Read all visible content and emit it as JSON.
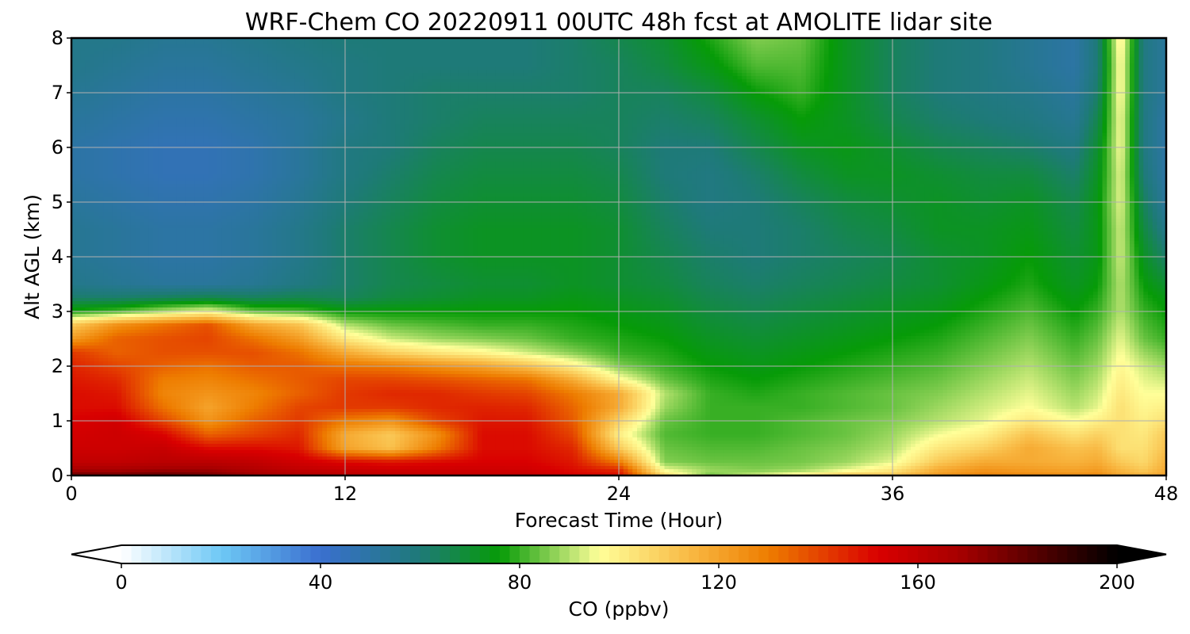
{
  "chart_data": {
    "type": "heatmap",
    "title": "WRF-Chem CO  20220911 00UTC 48h fcst at AMOLITE lidar site",
    "xlabel": "Forecast Time (Hour)",
    "ylabel": "Alt AGL (km)",
    "xlim": [
      0,
      48
    ],
    "ylim": [
      0,
      8
    ],
    "x_ticks": [
      "0",
      "12",
      "24",
      "36",
      "48"
    ],
    "y_ticks": [
      "0",
      "1",
      "2",
      "3",
      "4",
      "5",
      "6",
      "7",
      "8"
    ],
    "grid": true,
    "colorbar": {
      "label": "CO  (ppbv)",
      "range": [
        0,
        200
      ],
      "ticks": [
        "0",
        "40",
        "80",
        "120",
        "160",
        "200"
      ],
      "extend": "both",
      "stops": [
        {
          "value": 0,
          "color": "#ffffff"
        },
        {
          "value": 20,
          "color": "#6ec8f5"
        },
        {
          "value": 40,
          "color": "#3a6fcf"
        },
        {
          "value": 60,
          "color": "#1e7a78"
        },
        {
          "value": 76,
          "color": "#069b07"
        },
        {
          "value": 96,
          "color": "#ffff99"
        },
        {
          "value": 115,
          "color": "#f8b640"
        },
        {
          "value": 130,
          "color": "#ee7d00"
        },
        {
          "value": 152,
          "color": "#d90000"
        },
        {
          "value": 168,
          "color": "#a80000"
        },
        {
          "value": 200,
          "color": "#000000"
        }
      ]
    },
    "grid_x": [
      0,
      2,
      4,
      6,
      8,
      10,
      12,
      14,
      16,
      18,
      20,
      22,
      24,
      26,
      28,
      30,
      32,
      34,
      36,
      38,
      40,
      42,
      44,
      45,
      46,
      47,
      48
    ],
    "grid_y": [
      0,
      0.1,
      0.25,
      0.5,
      0.75,
      1.0,
      1.25,
      1.5,
      1.75,
      2.0,
      2.25,
      2.5,
      2.75,
      3.0,
      3.25,
      3.5,
      4,
      4.5,
      5,
      5.5,
      6,
      6.5,
      7,
      7.5,
      8
    ],
    "values": [
      [
        180,
        178,
        182,
        178,
        170,
        165,
        162,
        160,
        158,
        158,
        158,
        152,
        150,
        105,
        85,
        92,
        100,
        110,
        110,
        122,
        128,
        126,
        125,
        126,
        118,
        115,
        120
      ],
      [
        168,
        168,
        170,
        170,
        165,
        160,
        158,
        156,
        156,
        156,
        155,
        150,
        145,
        95,
        88,
        86,
        88,
        94,
        102,
        118,
        124,
        122,
        120,
        122,
        115,
        110,
        118
      ],
      [
        160,
        160,
        162,
        162,
        160,
        155,
        150,
        148,
        150,
        152,
        152,
        148,
        130,
        86,
        84,
        84,
        85,
        88,
        94,
        110,
        118,
        118,
        116,
        118,
        110,
        106,
        116
      ],
      [
        156,
        156,
        158,
        150,
        150,
        148,
        120,
        112,
        130,
        150,
        150,
        145,
        110,
        84,
        82,
        82,
        84,
        86,
        90,
        102,
        108,
        118,
        112,
        114,
        104,
        104,
        112
      ],
      [
        154,
        156,
        152,
        135,
        140,
        145,
        118,
        110,
        125,
        150,
        150,
        140,
        100,
        82,
        80,
        80,
        82,
        84,
        88,
        95,
        100,
        112,
        104,
        108,
        104,
        102,
        110
      ],
      [
        152,
        155,
        140,
        124,
        135,
        142,
        130,
        125,
        140,
        148,
        148,
        136,
        108,
        84,
        80,
        80,
        82,
        84,
        86,
        90,
        94,
        102,
        96,
        100,
        104,
        100,
        104
      ],
      [
        150,
        150,
        132,
        120,
        130,
        140,
        142,
        142,
        145,
        146,
        145,
        134,
        118,
        88,
        80,
        80,
        80,
        82,
        84,
        88,
        92,
        96,
        90,
        94,
        104,
        98,
        100
      ],
      [
        150,
        148,
        128,
        124,
        128,
        135,
        142,
        145,
        145,
        142,
        140,
        130,
        118,
        90,
        80,
        78,
        80,
        82,
        84,
        86,
        90,
        94,
        88,
        92,
        102,
        96,
        96
      ],
      [
        148,
        145,
        130,
        128,
        132,
        136,
        140,
        140,
        138,
        135,
        132,
        118,
        98,
        84,
        78,
        76,
        78,
        80,
        82,
        84,
        88,
        92,
        86,
        90,
        100,
        94,
        92
      ],
      [
        146,
        140,
        135,
        132,
        136,
        136,
        132,
        130,
        125,
        120,
        112,
        100,
        86,
        80,
        76,
        74,
        76,
        78,
        80,
        82,
        86,
        90,
        84,
        88,
        98,
        92,
        88
      ],
      [
        142,
        135,
        138,
        138,
        138,
        132,
        118,
        108,
        102,
        98,
        92,
        86,
        80,
        78,
        74,
        72,
        74,
        76,
        78,
        80,
        84,
        88,
        82,
        86,
        96,
        88,
        84
      ],
      [
        122,
        135,
        138,
        140,
        132,
        122,
        102,
        92,
        88,
        86,
        84,
        80,
        78,
        76,
        72,
        70,
        72,
        74,
        76,
        78,
        82,
        86,
        80,
        84,
        94,
        84,
        80
      ],
      [
        110,
        125,
        132,
        138,
        120,
        112,
        90,
        84,
        82,
        80,
        80,
        78,
        76,
        74,
        70,
        68,
        70,
        72,
        74,
        76,
        80,
        84,
        78,
        82,
        92,
        82,
        78
      ],
      [
        78,
        82,
        90,
        96,
        84,
        82,
        76,
        76,
        76,
        76,
        76,
        76,
        74,
        72,
        68,
        66,
        68,
        70,
        72,
        74,
        78,
        82,
        76,
        80,
        90,
        80,
        76
      ],
      [
        62,
        62,
        64,
        66,
        64,
        66,
        64,
        68,
        70,
        72,
        72,
        74,
        72,
        70,
        66,
        64,
        66,
        68,
        70,
        72,
        76,
        80,
        74,
        78,
        90,
        78,
        74
      ],
      [
        56,
        54,
        52,
        52,
        54,
        58,
        62,
        66,
        68,
        70,
        70,
        72,
        70,
        68,
        64,
        62,
        64,
        66,
        68,
        70,
        74,
        78,
        72,
        76,
        90,
        76,
        70
      ],
      [
        54,
        52,
        50,
        50,
        52,
        56,
        62,
        66,
        70,
        72,
        72,
        72,
        70,
        66,
        62,
        60,
        62,
        64,
        66,
        70,
        72,
        76,
        70,
        74,
        92,
        72,
        62
      ],
      [
        54,
        52,
        50,
        50,
        52,
        56,
        62,
        66,
        70,
        72,
        72,
        72,
        70,
        64,
        60,
        60,
        62,
        66,
        68,
        72,
        72,
        74,
        68,
        74,
        92,
        68,
        56
      ],
      [
        52,
        50,
        48,
        48,
        50,
        54,
        60,
        64,
        68,
        70,
        70,
        70,
        68,
        62,
        58,
        60,
        64,
        68,
        70,
        72,
        70,
        72,
        66,
        74,
        94,
        64,
        52
      ],
      [
        50,
        48,
        46,
        46,
        48,
        52,
        58,
        62,
        66,
        68,
        68,
        68,
        66,
        60,
        58,
        62,
        68,
        72,
        72,
        70,
        68,
        68,
        62,
        72,
        94,
        60,
        50
      ],
      [
        50,
        48,
        46,
        46,
        48,
        52,
        58,
        60,
        64,
        66,
        66,
        66,
        64,
        60,
        60,
        66,
        72,
        74,
        70,
        66,
        64,
        62,
        58,
        70,
        96,
        58,
        50
      ],
      [
        52,
        50,
        48,
        48,
        50,
        52,
        56,
        60,
        62,
        64,
        64,
        64,
        64,
        62,
        64,
        70,
        76,
        72,
        66,
        62,
        60,
        58,
        54,
        66,
        96,
        58,
        50
      ],
      [
        54,
        52,
        50,
        50,
        52,
        54,
        58,
        60,
        62,
        62,
        62,
        62,
        64,
        64,
        68,
        76,
        80,
        72,
        64,
        60,
        58,
        56,
        52,
        62,
        98,
        58,
        52
      ],
      [
        56,
        54,
        52,
        52,
        54,
        56,
        58,
        60,
        60,
        60,
        60,
        62,
        64,
        68,
        74,
        82,
        82,
        72,
        64,
        60,
        58,
        54,
        50,
        60,
        98,
        58,
        52
      ],
      [
        56,
        56,
        54,
        54,
        56,
        58,
        60,
        60,
        60,
        60,
        60,
        62,
        66,
        70,
        78,
        86,
        84,
        72,
        64,
        60,
        58,
        54,
        50,
        60,
        100,
        58,
        52
      ]
    ]
  }
}
